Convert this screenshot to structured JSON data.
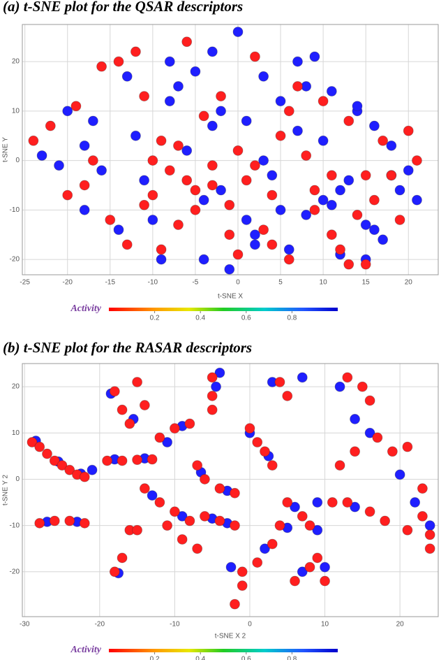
{
  "chart_data": [
    {
      "type": "scatter",
      "title": "(a) t-SNE plot for the QSAR descriptors",
      "x_label": "t-SNE X",
      "y_label": "t-SNE Y",
      "xlim": [
        -25.3,
        23.5
      ],
      "ylim": [
        -23.1,
        27.5
      ],
      "xticks": [
        -25,
        -20,
        -15,
        -10,
        -5,
        0,
        5,
        10,
        15,
        20
      ],
      "yticks": [
        -20,
        -10,
        0,
        10,
        20
      ],
      "grid": true,
      "colorbar": {
        "label": "Activity",
        "lim": [
          0,
          1
        ],
        "ticks": [
          0.2,
          0.4,
          0.6,
          0.8
        ]
      },
      "series": [
        {
          "color": "#1f1fff",
          "x": [
            -23,
            -21,
            -18,
            -18,
            -17,
            -14,
            -12,
            -10,
            -9,
            -8,
            -7,
            -5,
            -4,
            -3,
            -2,
            -1,
            0,
            1,
            2,
            3,
            4,
            5,
            6,
            7,
            8,
            9,
            10,
            11,
            12,
            13,
            14,
            15,
            16,
            17,
            18,
            19,
            20,
            21,
            -20,
            -16,
            -13,
            -11,
            -6,
            -4,
            -2,
            1,
            3,
            5,
            8,
            10,
            12,
            14,
            16,
            18,
            -8,
            -3,
            2,
            7,
            11,
            15
          ],
          "y": [
            1,
            -1,
            -10,
            3,
            8,
            -14,
            5,
            -12,
            -20,
            12,
            15,
            18,
            -20,
            22,
            -6,
            -22,
            26,
            8,
            -15,
            17,
            -3,
            12,
            -18,
            20,
            -11,
            21,
            -8,
            14,
            -19,
            -4,
            10,
            -13,
            7,
            -16,
            3,
            -6,
            -2,
            -8,
            10,
            -2,
            17,
            -4,
            2,
            -8,
            10,
            -12,
            0,
            -10,
            15,
            4,
            -6,
            11,
            -14,
            -3,
            20,
            7,
            -17,
            6,
            -9,
            -20
          ]
        },
        {
          "color": "#ff1f1f",
          "x": [
            -24,
            -22,
            -20,
            -19,
            -18,
            -17,
            -15,
            -14,
            -13,
            -12,
            -11,
            -10,
            -9,
            -8,
            -7,
            -6,
            -5,
            -4,
            -3,
            -2,
            -1,
            0,
            1,
            2,
            3,
            4,
            5,
            6,
            7,
            8,
            9,
            10,
            11,
            12,
            13,
            14,
            15,
            16,
            17,
            18,
            19,
            20,
            21,
            -16,
            -11,
            -9,
            -7,
            -5,
            -3,
            -1,
            2,
            4,
            6,
            9,
            11,
            13,
            15,
            -10,
            -6,
            0
          ],
          "y": [
            4,
            7,
            -7,
            11,
            -5,
            0,
            -12,
            20,
            -17,
            22,
            -9,
            0,
            4,
            -2,
            -13,
            24,
            -6,
            9,
            -1,
            13,
            -9,
            2,
            -4,
            21,
            -14,
            -7,
            5,
            -20,
            15,
            1,
            -10,
            12,
            -3,
            -18,
            8,
            -11,
            -21,
            -8,
            4,
            -3,
            -12,
            6,
            0,
            19,
            13,
            -18,
            3,
            -10,
            -5,
            -15,
            -1,
            -17,
            10,
            -6,
            -15,
            -21,
            -3,
            -7,
            -4,
            -19
          ]
        }
      ]
    },
    {
      "type": "scatter",
      "title": "(b) t-SNE plot for the RASAR descriptors",
      "x_label": "t-SNE X 2",
      "y_label": "t-SNE Y 2",
      "xlim": [
        -30.3,
        25.1
      ],
      "ylim": [
        -29.7,
        25.0
      ],
      "xticks": [
        -30,
        -20,
        -10,
        0,
        10,
        20
      ],
      "yticks": [
        -20,
        -10,
        0,
        10,
        20
      ],
      "grid": true,
      "colorbar": {
        "label": "Activity",
        "lim": [
          0,
          1
        ],
        "ticks": [
          0.2,
          0.4,
          0.6,
          0.8
        ]
      },
      "series": [
        {
          "color": "#1f1fff",
          "x": [
            -28.5,
            -25.5,
            -22.5,
            -21,
            -18,
            -14,
            -27,
            -23,
            -18.5,
            -15.5,
            -11,
            -9,
            -4,
            -4.5,
            -6.5,
            -3,
            -13,
            -9,
            -5,
            -3,
            -17.5,
            -2.5,
            2,
            5,
            0,
            2.5,
            3,
            7,
            6,
            9,
            7,
            10,
            9,
            14,
            12,
            14,
            16,
            20,
            22,
            24
          ],
          "y": [
            8.3,
            3.8,
            1.2,
            2,
            4.3,
            4.5,
            -9.2,
            -9.2,
            18.5,
            13,
            8,
            11.5,
            23,
            20,
            1.5,
            -2.5,
            -3.5,
            -8,
            -8.5,
            -9.5,
            -20.3,
            -19,
            -15,
            -10.5,
            10,
            5,
            21,
            22,
            -6,
            -11,
            -20,
            -19,
            -5,
            -6,
            20,
            13,
            10,
            1,
            -5,
            -10
          ]
        },
        {
          "color": "#ff1f1f",
          "x": [
            -29,
            -28,
            -27,
            -26,
            -25,
            -24,
            -23,
            -22,
            -19,
            -17,
            -15,
            -13,
            -28,
            -26,
            -24,
            -22,
            -18,
            -17,
            -16,
            -15,
            -14,
            -12,
            -10,
            -8,
            -5,
            -5,
            -5,
            -7,
            -6,
            -4,
            -2,
            -14,
            -12,
            -10,
            -8,
            -16,
            -15,
            -11,
            -9,
            -7,
            -6,
            -4,
            -2,
            -18,
            -17,
            -2,
            -1,
            -1,
            1,
            3,
            4,
            0,
            1,
            2,
            3,
            4,
            5,
            5,
            7,
            8,
            6,
            8,
            9,
            10,
            11,
            13,
            16,
            18,
            13,
            15,
            16,
            12,
            14,
            17,
            19,
            21,
            23,
            23,
            24,
            24,
            21
          ],
          "y": [
            8,
            7,
            5.5,
            4,
            3,
            2,
            1,
            0.5,
            4,
            4,
            4.2,
            4.3,
            -9.5,
            -9,
            -9,
            -9.5,
            19,
            15,
            12,
            21,
            16,
            9,
            11,
            12,
            22,
            18,
            15,
            3,
            0,
            -2,
            -3,
            -2,
            -5,
            -7,
            -9,
            -11,
            -11,
            -10,
            -13,
            -15,
            -8,
            -9,
            -10,
            -20,
            -17,
            -27,
            -23,
            -20,
            -18,
            -14,
            -10,
            11,
            8,
            6,
            3,
            21,
            18,
            -5,
            -8,
            -10,
            -22,
            -19,
            -17,
            -22,
            -5,
            -5,
            -7,
            -9,
            22,
            20,
            17,
            3,
            6,
            9,
            6,
            7,
            -2,
            -8,
            -12,
            -15,
            -11
          ]
        }
      ]
    }
  ]
}
